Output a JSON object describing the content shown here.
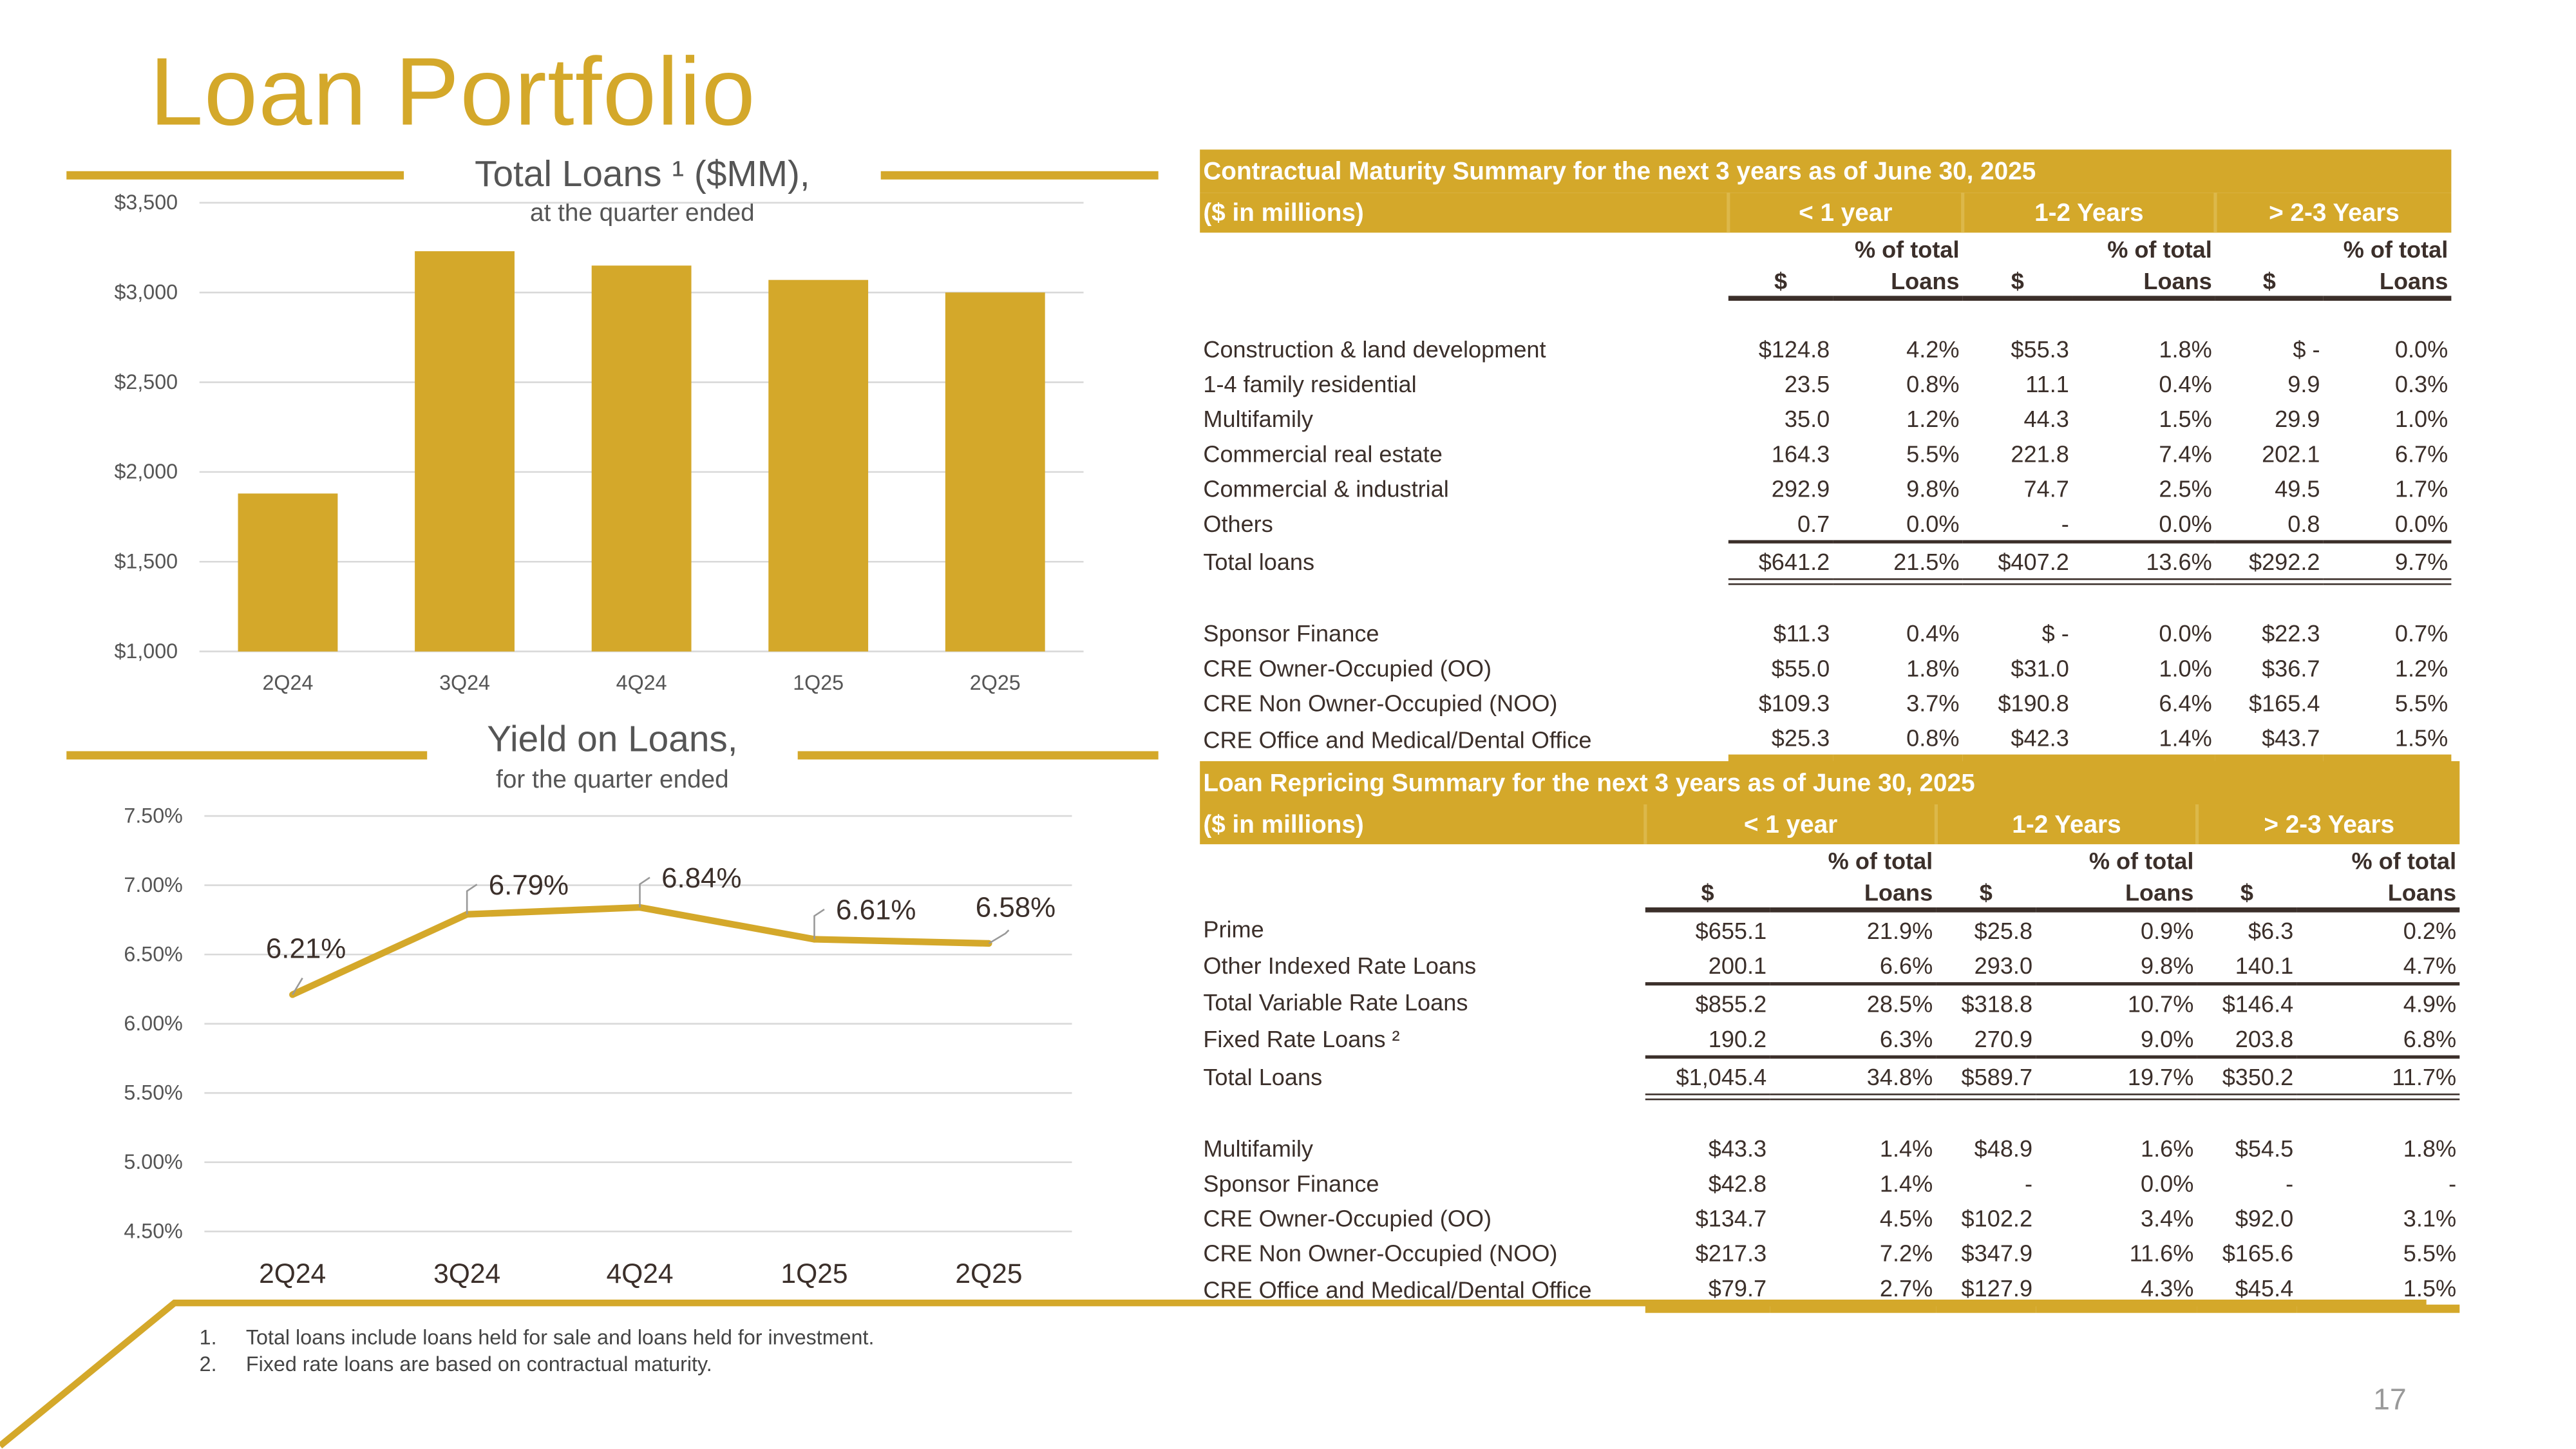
{
  "page_title": "Loan Portfolio",
  "page_number": "17",
  "total_loans_chart": {
    "title": "Total Loans ¹ ($MM),",
    "subtitle": "at the quarter ended",
    "chart_data": {
      "type": "bar",
      "categories": [
        "2Q24",
        "3Q24",
        "4Q24",
        "1Q25",
        "2Q25"
      ],
      "values": [
        1880,
        3230,
        3150,
        3070,
        3000
      ],
      "ylim": [
        1000,
        3500
      ],
      "yticks": [
        "$1,000",
        "$1,500",
        "$2,000",
        "$2,500",
        "$3,000",
        "$3,500"
      ],
      "ytick_values": [
        1000,
        1500,
        2000,
        2500,
        3000,
        3500
      ],
      "color": "#D4A82A",
      "grid": true
    }
  },
  "yield_chart": {
    "title": "Yield on Loans,",
    "subtitle": "for the quarter ended",
    "chart_data": {
      "type": "line",
      "categories": [
        "2Q24",
        "3Q24",
        "4Q24",
        "1Q25",
        "2Q25"
      ],
      "values": [
        6.21,
        6.79,
        6.84,
        6.61,
        6.58
      ],
      "labels": [
        "6.21%",
        "6.79%",
        "6.84%",
        "6.61%",
        "6.58%"
      ],
      "ylim": [
        4.5,
        7.5
      ],
      "yticks": [
        "4.50%",
        "5.00%",
        "5.50%",
        "6.00%",
        "6.50%",
        "7.00%",
        "7.50%"
      ],
      "ytick_values": [
        4.5,
        5.0,
        5.5,
        6.0,
        6.5,
        7.0,
        7.5
      ],
      "color": "#D4A82A",
      "grid": true
    }
  },
  "maturity_table": {
    "title": "Contractual Maturity Summary for the next 3 years as of June 30, 2025",
    "unit": "($ in millions)",
    "groups": [
      "< 1 year",
      "1-2 Years",
      "> 2-3 Years"
    ],
    "sub1": [
      "",
      "% of total",
      "",
      "% of total",
      "",
      "% of total"
    ],
    "sub2": [
      "$",
      "Loans",
      "$",
      "Loans",
      "$",
      "Loans"
    ],
    "rows": [
      {
        "label": "Construction & land development",
        "cells": [
          "$124.8",
          "4.2%",
          "$55.3",
          "1.8%",
          "$      -",
          "0.0%"
        ]
      },
      {
        "label": "1-4 family residential",
        "cells": [
          "23.5",
          "0.8%",
          "11.1",
          "0.4%",
          "9.9",
          "0.3%"
        ]
      },
      {
        "label": "Multifamily",
        "cells": [
          "35.0",
          "1.2%",
          "44.3",
          "1.5%",
          "29.9",
          "1.0%"
        ]
      },
      {
        "label": "Commercial real estate",
        "cells": [
          "164.3",
          "5.5%",
          "221.8",
          "7.4%",
          "202.1",
          "6.7%"
        ]
      },
      {
        "label": "Commercial & industrial",
        "cells": [
          "292.9",
          "9.8%",
          "74.7",
          "2.5%",
          "49.5",
          "1.7%"
        ]
      },
      {
        "label": "Others",
        "cells": [
          "0.7",
          "0.0%",
          "-",
          "0.0%",
          "0.8",
          "0.0%"
        ]
      },
      {
        "label": "Total loans",
        "cells": [
          "$641.2",
          "21.5%",
          "$407.2",
          "13.6%",
          "$292.2",
          "9.7%"
        ]
      },
      {
        "label": "Sponsor Finance",
        "cells": [
          "$11.3",
          "0.4%",
          "$      -",
          "0.0%",
          "$22.3",
          "0.7%"
        ]
      },
      {
        "label": "CRE Owner-Occupied (OO)",
        "cells": [
          "$55.0",
          "1.8%",
          "$31.0",
          "1.0%",
          "$36.7",
          "1.2%"
        ]
      },
      {
        "label": "CRE Non Owner-Occupied (NOO)",
        "cells": [
          "$109.3",
          "3.7%",
          "$190.8",
          "6.4%",
          "$165.4",
          "5.5%"
        ]
      },
      {
        "label": "CRE Office and Medical/Dental Office",
        "cells": [
          "$25.3",
          "0.8%",
          "$42.3",
          "1.4%",
          "$43.7",
          "1.5%"
        ]
      }
    ]
  },
  "repricing_table": {
    "title": "Loan Repricing Summary for the next 3 years as of June 30, 2025",
    "unit": "($ in millions)",
    "groups": [
      "< 1 year",
      "1-2 Years",
      "> 2-3 Years"
    ],
    "sub1": [
      "",
      "% of total",
      "",
      "% of total",
      "",
      "% of total"
    ],
    "sub2": [
      "$",
      "Loans",
      "$",
      "Loans",
      "$",
      "Loans"
    ],
    "rows": [
      {
        "label": "Prime",
        "cells": [
          "$655.1",
          "21.9%",
          "$25.8",
          "0.9%",
          "$6.3",
          "0.2%"
        ]
      },
      {
        "label": "Other Indexed Rate Loans",
        "cells": [
          "200.1",
          "6.6%",
          "293.0",
          "9.8%",
          "140.1",
          "4.7%"
        ]
      },
      {
        "label": "Total Variable Rate Loans",
        "cells": [
          "$855.2",
          "28.5%",
          "$318.8",
          "10.7%",
          "$146.4",
          "4.9%"
        ]
      },
      {
        "label": "Fixed Rate Loans ²",
        "cells": [
          "190.2",
          "6.3%",
          "270.9",
          "9.0%",
          "203.8",
          "6.8%"
        ]
      },
      {
        "label": "Total Loans",
        "cells": [
          "$1,045.4",
          "34.8%",
          "$589.7",
          "19.7%",
          "$350.2",
          "11.7%"
        ]
      },
      {
        "label": "Multifamily",
        "cells": [
          "$43.3",
          "1.4%",
          "$48.9",
          "1.6%",
          "$54.5",
          "1.8%"
        ]
      },
      {
        "label": "Sponsor Finance",
        "cells": [
          "$42.8",
          "1.4%",
          "-",
          "0.0%",
          "-",
          "-"
        ]
      },
      {
        "label": "CRE Owner-Occupied (OO)",
        "cells": [
          "$134.7",
          "4.5%",
          "$102.2",
          "3.4%",
          "$92.0",
          "3.1%"
        ]
      },
      {
        "label": "CRE Non Owner-Occupied (NOO)",
        "cells": [
          "$217.3",
          "7.2%",
          "$347.9",
          "11.6%",
          "$165.6",
          "5.5%"
        ]
      },
      {
        "label": "CRE Office and Medical/Dental Office",
        "cells": [
          "$79.7",
          "2.7%",
          "$127.9",
          "4.3%",
          "$45.4",
          "1.5%"
        ]
      }
    ]
  },
  "footnotes": [
    {
      "num": "1.",
      "text": "Total loans include loans held for sale and loans held for investment."
    },
    {
      "num": "2.",
      "text": "Fixed rate loans are based on contractual maturity."
    }
  ]
}
